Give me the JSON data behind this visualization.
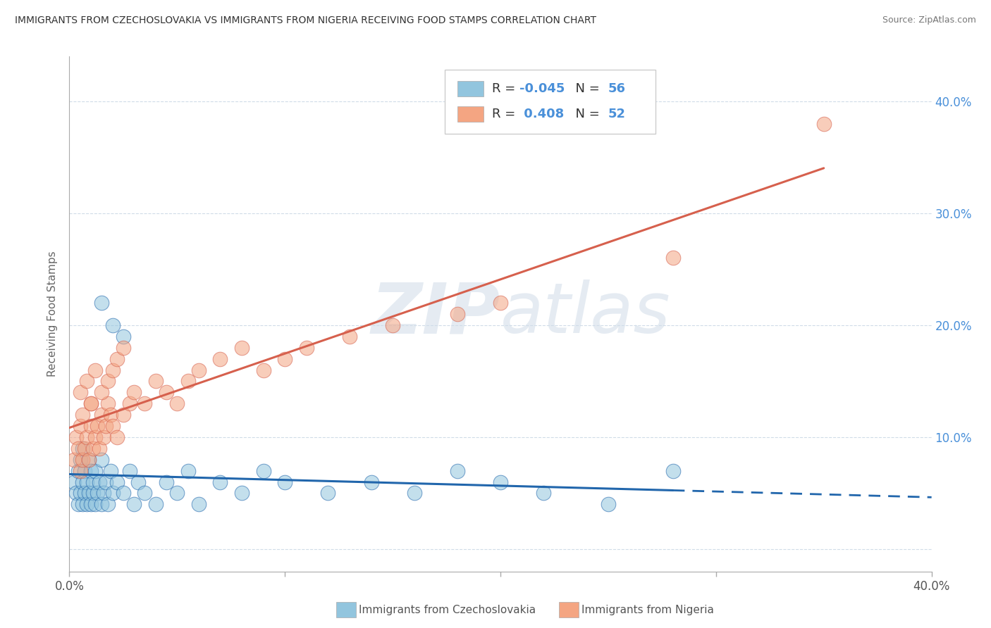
{
  "title": "IMMIGRANTS FROM CZECHOSLOVAKIA VS IMMIGRANTS FROM NIGERIA RECEIVING FOOD STAMPS CORRELATION CHART",
  "source": "Source: ZipAtlas.com",
  "ylabel": "Receiving Food Stamps",
  "legend_r1": "R = -0.045",
  "legend_n1": "N = 56",
  "legend_r2": "R =  0.408",
  "legend_n2": "N = 52",
  "legend_label1": "Immigrants from Czechoslovakia",
  "legend_label2": "Immigrants from Nigeria",
  "xlim": [
    0.0,
    0.4
  ],
  "ylim": [
    -0.02,
    0.44
  ],
  "ytick_vals": [
    0.0,
    0.1,
    0.2,
    0.3,
    0.4
  ],
  "ytick_labels": [
    "",
    "10.0%",
    "20.0%",
    "30.0%",
    "40.0%"
  ],
  "xtick_vals": [
    0.0,
    0.1,
    0.2,
    0.3,
    0.4
  ],
  "xtick_labels": [
    "0.0%",
    "",
    "",
    "",
    "40.0%"
  ],
  "color_blue": "#92c5de",
  "color_pink": "#f4a582",
  "color_blue_line": "#2166ac",
  "color_pink_line": "#d6604d",
  "watermark": "ZIPatlas",
  "background": "#ffffff",
  "grid_color": "#d0dce8",
  "czech_x": [
    0.002,
    0.003,
    0.004,
    0.004,
    0.005,
    0.005,
    0.006,
    0.006,
    0.006,
    0.007,
    0.007,
    0.008,
    0.008,
    0.009,
    0.009,
    0.01,
    0.01,
    0.011,
    0.011,
    0.012,
    0.012,
    0.013,
    0.014,
    0.015,
    0.015,
    0.016,
    0.017,
    0.018,
    0.019,
    0.02,
    0.022,
    0.025,
    0.028,
    0.03,
    0.032,
    0.035,
    0.04,
    0.045,
    0.05,
    0.055,
    0.06,
    0.07,
    0.08,
    0.09,
    0.1,
    0.12,
    0.14,
    0.16,
    0.18,
    0.2,
    0.22,
    0.25,
    0.28,
    0.015,
    0.02,
    0.025
  ],
  "czech_y": [
    0.06,
    0.05,
    0.04,
    0.07,
    0.05,
    0.08,
    0.04,
    0.06,
    0.09,
    0.05,
    0.07,
    0.04,
    0.06,
    0.05,
    0.08,
    0.04,
    0.07,
    0.05,
    0.06,
    0.04,
    0.07,
    0.05,
    0.06,
    0.04,
    0.08,
    0.05,
    0.06,
    0.04,
    0.07,
    0.05,
    0.06,
    0.05,
    0.07,
    0.04,
    0.06,
    0.05,
    0.04,
    0.06,
    0.05,
    0.07,
    0.04,
    0.06,
    0.05,
    0.07,
    0.06,
    0.05,
    0.06,
    0.05,
    0.07,
    0.06,
    0.05,
    0.04,
    0.07,
    0.22,
    0.2,
    0.19
  ],
  "nigeria_x": [
    0.002,
    0.003,
    0.004,
    0.005,
    0.005,
    0.006,
    0.006,
    0.007,
    0.008,
    0.009,
    0.01,
    0.01,
    0.011,
    0.012,
    0.013,
    0.014,
    0.015,
    0.016,
    0.017,
    0.018,
    0.019,
    0.02,
    0.022,
    0.025,
    0.028,
    0.03,
    0.035,
    0.04,
    0.045,
    0.05,
    0.055,
    0.06,
    0.07,
    0.08,
    0.09,
    0.1,
    0.11,
    0.13,
    0.15,
    0.18,
    0.2,
    0.28,
    0.35,
    0.005,
    0.008,
    0.01,
    0.012,
    0.015,
    0.018,
    0.02,
    0.022,
    0.025
  ],
  "nigeria_y": [
    0.08,
    0.1,
    0.09,
    0.07,
    0.11,
    0.08,
    0.12,
    0.09,
    0.1,
    0.08,
    0.11,
    0.13,
    0.09,
    0.1,
    0.11,
    0.09,
    0.12,
    0.1,
    0.11,
    0.13,
    0.12,
    0.11,
    0.1,
    0.12,
    0.13,
    0.14,
    0.13,
    0.15,
    0.14,
    0.13,
    0.15,
    0.16,
    0.17,
    0.18,
    0.16,
    0.17,
    0.18,
    0.19,
    0.2,
    0.21,
    0.22,
    0.26,
    0.38,
    0.14,
    0.15,
    0.13,
    0.16,
    0.14,
    0.15,
    0.16,
    0.17,
    0.18
  ]
}
